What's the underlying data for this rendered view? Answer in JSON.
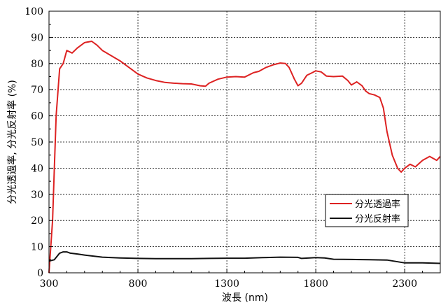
{
  "chart_data": {
    "type": "line",
    "title": "",
    "xlabel": "波長 (nm)",
    "ylabel": "分光透過率, 分光反射率 (%)",
    "xlim": [
      300,
      2500
    ],
    "ylim": [
      0,
      100
    ],
    "xticks": [
      300,
      800,
      1300,
      1800,
      2300
    ],
    "yticks": [
      0,
      10,
      20,
      30,
      40,
      50,
      60,
      70,
      80,
      90,
      100
    ],
    "grid": true,
    "legend_position": "bottom-right",
    "series": [
      {
        "name": "分光透過率",
        "color": "#dd2222",
        "x": [
          300,
          320,
          340,
          360,
          380,
          400,
          430,
          460,
          500,
          540,
          570,
          600,
          650,
          700,
          750,
          800,
          850,
          900,
          950,
          1000,
          1050,
          1100,
          1150,
          1180,
          1200,
          1250,
          1300,
          1350,
          1400,
          1450,
          1480,
          1520,
          1560,
          1600,
          1630,
          1650,
          1680,
          1700,
          1720,
          1750,
          1780,
          1800,
          1830,
          1860,
          1900,
          1950,
          1980,
          2000,
          2030,
          2060,
          2080,
          2100,
          2130,
          2160,
          2180,
          2200,
          2230,
          2260,
          2280,
          2300,
          2330,
          2360,
          2400,
          2440,
          2480,
          2500
        ],
        "y": [
          0,
          20,
          60,
          78,
          80,
          85,
          84,
          86,
          88,
          88.5,
          87,
          85,
          83,
          81,
          78.5,
          76,
          74.5,
          73.5,
          72.8,
          72.5,
          72.3,
          72.2,
          71.5,
          71.3,
          72.5,
          74,
          74.8,
          75,
          74.8,
          76.5,
          77,
          78.5,
          79.5,
          80.2,
          80,
          78.5,
          74,
          71.5,
          72.5,
          75.5,
          76.5,
          77.2,
          76.8,
          75.2,
          75,
          75.2,
          73.5,
          71.8,
          73,
          71.5,
          69.5,
          68.5,
          68,
          67,
          63,
          54,
          45,
          40,
          38.5,
          40,
          41.5,
          40.5,
          43,
          44.5,
          43,
          44.5
        ]
      },
      {
        "name": "分光反射率",
        "color": "#111111",
        "x": [
          300,
          330,
          360,
          380,
          400,
          420,
          460,
          500,
          600,
          700,
          800,
          900,
          1000,
          1100,
          1200,
          1300,
          1400,
          1500,
          1600,
          1700,
          1720,
          1800,
          1850,
          1900,
          2000,
          2100,
          2200,
          2300,
          2400,
          2500
        ],
        "y": [
          4.5,
          5,
          7.5,
          8,
          8,
          7.5,
          7.2,
          6.8,
          6,
          5.7,
          5.5,
          5.4,
          5.4,
          5.4,
          5.5,
          5.6,
          5.6,
          5.8,
          6,
          5.9,
          5.5,
          5.8,
          5.7,
          5.2,
          5.1,
          5,
          4.9,
          3.8,
          3.8,
          3.6
        ]
      }
    ]
  }
}
